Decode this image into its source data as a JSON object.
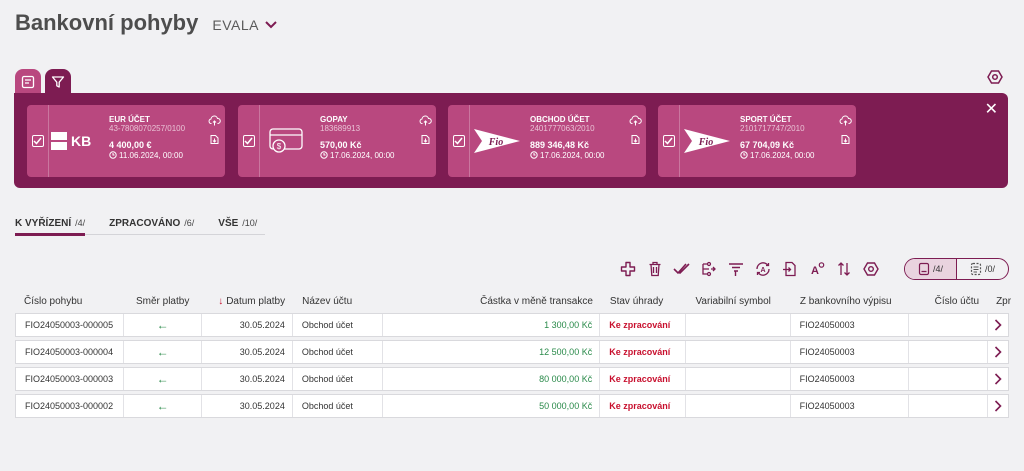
{
  "header": {
    "title": "Bankovní pohyby",
    "company": "EVALA"
  },
  "accounts": [
    {
      "name": "EUR ÚČET",
      "number": "43-7808070257/0100",
      "balance": "4 400,00 €",
      "date": "11.06.2024, 00:00",
      "logo": "kb-logo"
    },
    {
      "name": "GOPAY",
      "number": "183689913",
      "balance": "570,00 Kč",
      "date": "17.06.2024, 00:00",
      "logo": "card-logo"
    },
    {
      "name": "OBCHOD ÚČET",
      "number": "2401777063/2010",
      "balance": "889 346,48 Kč",
      "date": "17.06.2024, 00:00",
      "logo": "fio-logo"
    },
    {
      "name": "SPORT ÚČET",
      "number": "2101717747/2010",
      "balance": "67 704,09 Kč",
      "date": "17.06.2024, 00:00",
      "logo": "fio-logo"
    }
  ],
  "kb_logo_text": "KB",
  "fio_logo_text": "Fio",
  "tabs": [
    {
      "label": "K VYŘÍZENÍ",
      "count": "/4/"
    },
    {
      "label": "ZPRACOVÁNO",
      "count": "/6/"
    },
    {
      "label": "VŠE",
      "count": "/10/"
    }
  ],
  "view_toggle": {
    "list_count": "/4/",
    "detail_count": "/0/"
  },
  "columns": [
    "Číslo pohybu",
    "Směr platby",
    "Datum platby",
    "Název účtu",
    "Částka v měně transakce",
    "Stav úhrady",
    "Variabilní symbol",
    "Z bankovního výpisu",
    "Číslo účtu",
    "Zpr"
  ],
  "rows": [
    {
      "id": "FIO24050003-000005",
      "direction": "←",
      "date": "30.05.2024",
      "account": "Obchod účet",
      "amount": "1 300,00 Kč",
      "state": "Ke zpracování",
      "vs": "",
      "statement": "FIO24050003",
      "account_no": ""
    },
    {
      "id": "FIO24050003-000004",
      "direction": "←",
      "date": "30.05.2024",
      "account": "Obchod účet",
      "amount": "12 500,00 Kč",
      "state": "Ke zpracování",
      "vs": "",
      "statement": "FIO24050003",
      "account_no": ""
    },
    {
      "id": "FIO24050003-000003",
      "direction": "←",
      "date": "30.05.2024",
      "account": "Obchod účet",
      "amount": "80 000,00 Kč",
      "state": "Ke zpracování",
      "vs": "",
      "statement": "FIO24050003",
      "account_no": ""
    },
    {
      "id": "FIO24050003-000002",
      "direction": "←",
      "date": "30.05.2024",
      "account": "Obchod účet",
      "amount": "50 000,00 Kč",
      "state": "Ke zpracování",
      "vs": "",
      "statement": "FIO24050003",
      "account_no": ""
    }
  ],
  "colors": {
    "brand": "#7d1c52",
    "card": "#b9487f",
    "amount": "#2a8a4a",
    "state": "#c8102e"
  }
}
